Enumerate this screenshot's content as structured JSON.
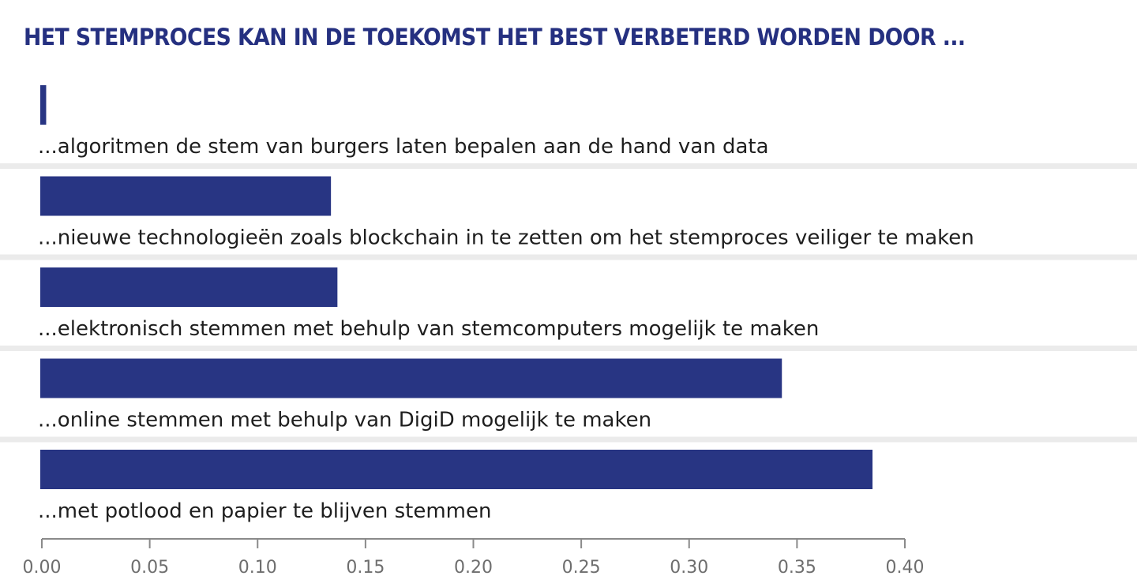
{
  "chart_data": {
    "type": "bar",
    "orientation": "horizontal",
    "title": "HET STEMPROCES KAN IN DE TOEKOMST HET BEST VERBETERD WORDEN DOOR ...",
    "xlabel": "",
    "ylabel": "",
    "categories": [
      "...algoritmen de stem van burgers laten bepalen aan de hand van data",
      "...nieuwe technologieën zoals blockchain in te zetten om het stemproces veiliger te maken",
      "...elektronisch stemmen met behulp van stemcomputers mogelijk te maken",
      "...online stemmen met behulp van DigiD mogelijk te maken",
      "...met potlood en papier te blijven stemmen"
    ],
    "values": [
      0.002,
      0.134,
      0.137,
      0.343,
      0.385
    ],
    "xlim": [
      0.0,
      0.4
    ],
    "xticks": [
      0.0,
      0.05,
      0.1,
      0.15,
      0.2,
      0.25,
      0.3,
      0.35,
      0.4
    ],
    "xtick_labels": [
      "0.00",
      "0.05",
      "0.10",
      "0.15",
      "0.20",
      "0.25",
      "0.30",
      "0.35",
      "0.40"
    ],
    "grid": false,
    "legend": "none",
    "colors": {
      "bar": "#283583",
      "title": "#253080",
      "separator": "#ebebeb",
      "axis": "#8a8a8a",
      "label": "#1e1e1e",
      "tick_label": "#6e6e6e"
    }
  }
}
